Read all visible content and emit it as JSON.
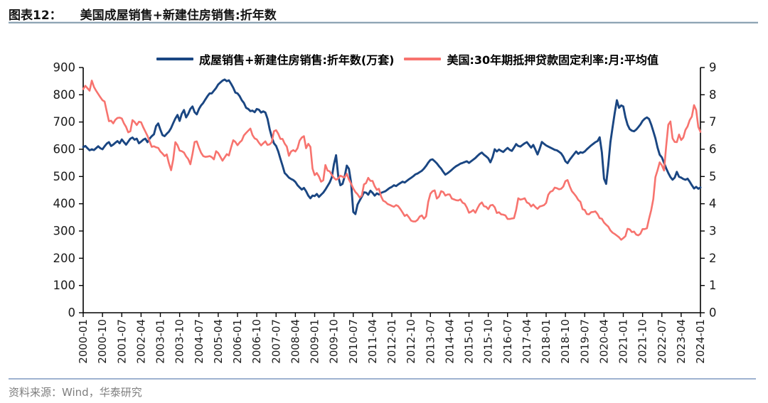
{
  "header": {
    "prefix": "图表12：",
    "title": "美国成屋销售+新建住房销售:折年数"
  },
  "legend": [
    {
      "label": "成屋销售+新建住房销售:折年数(万套)",
      "color": "#1a4682"
    },
    {
      "label": "美国:30年期抵押贷款固定利率:月:平均值",
      "color": "#f7736e"
    }
  ],
  "footer": {
    "source_label": "资料来源：Wind，华泰研究"
  },
  "chart_data": {
    "type": "line",
    "title": "美国成屋销售+新建住房销售:折年数",
    "x_start": "2000-01",
    "x_end": "2024-01",
    "x_frequency": "monthly",
    "x_tick_labels": [
      "2000-01",
      "2000-10",
      "2001-07",
      "2002-04",
      "2003-01",
      "2003-10",
      "2004-07",
      "2005-04",
      "2006-01",
      "2006-10",
      "2007-07",
      "2008-04",
      "2009-01",
      "2009-10",
      "2010-07",
      "2011-04",
      "2012-01",
      "2012-10",
      "2013-07",
      "2014-04",
      "2015-01",
      "2015-10",
      "2016-07",
      "2017-04",
      "2018-01",
      "2018-10",
      "2019-07",
      "2020-04",
      "2021-01",
      "2021-10",
      "2022-07",
      "2023-04",
      "2024-01"
    ],
    "x_tick_step_months": 9,
    "grid": false,
    "legend_position": "top-center",
    "left_axis": {
      "range": [
        0,
        900
      ],
      "ticks": [
        0,
        100,
        200,
        300,
        400,
        500,
        600,
        700,
        800,
        900
      ]
    },
    "right_axis": {
      "range": [
        0,
        9
      ],
      "ticks": [
        0,
        1,
        2,
        3,
        4,
        5,
        6,
        7,
        8,
        9
      ]
    },
    "series": [
      {
        "name": "成屋销售+新建住房销售:折年数(万套)",
        "axis": "left",
        "color": "#1a4682",
        "values": [
          608,
          612,
          604,
          596,
          600,
          597,
          604,
          611,
          604,
          600,
          611,
          621,
          626,
          612,
          617,
          624,
          630,
          622,
          636,
          626,
          617,
          628,
          639,
          643,
          635,
          639,
          622,
          628,
          635,
          639,
          626,
          639,
          648,
          655,
          685,
          695,
          672,
          652,
          648,
          657,
          665,
          678,
          696,
          713,
          726,
          704,
          730,
          744,
          717,
          730,
          748,
          757,
          736,
          728,
          748,
          761,
          770,
          783,
          795,
          805,
          805,
          815,
          825,
          838,
          845,
          852,
          856,
          850,
          853,
          840,
          826,
          808,
          805,
          795,
          780,
          770,
          752,
          748,
          740,
          742,
          736,
          748,
          745,
          735,
          739,
          735,
          712,
          674,
          645,
          622,
          612,
          592,
          565,
          540,
          513,
          505,
          496,
          491,
          487,
          480,
          468,
          460,
          452,
          458,
          446,
          430,
          420,
          430,
          428,
          436,
          425,
          433,
          441,
          452,
          465,
          478,
          497,
          545,
          578,
          500,
          468,
          473,
          500,
          540,
          528,
          478,
          370,
          362,
          397,
          412,
          426,
          442,
          441,
          433,
          448,
          440,
          430,
          438,
          434,
          440,
          443,
          446,
          452,
          458,
          462,
          468,
          465,
          471,
          476,
          481,
          478,
          484,
          490,
          495,
          501,
          508,
          511,
          516,
          521,
          529,
          539,
          551,
          561,
          563,
          556,
          548,
          538,
          529,
          517,
          507,
          512,
          518,
          525,
          532,
          538,
          542,
          547,
          550,
          553,
          556,
          550,
          556,
          562,
          568,
          576,
          583,
          588,
          580,
          574,
          567,
          552,
          571,
          600,
          592,
          599,
          594,
          590,
          598,
          605,
          598,
          594,
          606,
          619,
          612,
          610,
          616,
          622,
          626,
          616,
          606,
          616,
          599,
          581,
          602,
          627,
          620,
          614,
          610,
          606,
          602,
          598,
          596,
          591,
          585,
          573,
          556,
          549,
          562,
          572,
          582,
          592,
          583,
          589,
          587,
          592,
          600,
          607,
          614,
          620,
          626,
          630,
          644,
          588,
          492,
          473,
          542,
          626,
          680,
          732,
          780,
          752,
          761,
          757,
          718,
          690,
          674,
          668,
          666,
          672,
          681,
          691,
          704,
          712,
          717,
          711,
          691,
          666,
          640,
          606,
          580,
          570,
          550,
          530,
          513,
          498,
          488,
          496,
          517,
          499,
          496,
          491,
          488,
          492,
          481,
          468,
          456,
          462,
          455,
          460
        ]
      },
      {
        "name": "美国:30年期抵押贷款固定利率:月:平均值",
        "axis": "right",
        "color": "#f7736e",
        "values": [
          8.21,
          8.33,
          8.24,
          8.15,
          8.52,
          8.29,
          8.15,
          8.03,
          7.91,
          7.8,
          7.75,
          7.38,
          7.03,
          7.05,
          6.95,
          7.08,
          7.15,
          7.16,
          7.13,
          6.95,
          6.82,
          6.62,
          6.66,
          7.07,
          7.0,
          6.89,
          7.01,
          6.99,
          6.81,
          6.65,
          6.49,
          6.29,
          6.09,
          6.11,
          6.07,
          6.05,
          5.92,
          5.84,
          5.75,
          5.81,
          5.48,
          5.23,
          5.63,
          6.26,
          6.15,
          5.95,
          5.93,
          5.88,
          5.74,
          5.64,
          5.45,
          5.83,
          6.27,
          6.29,
          6.06,
          5.87,
          5.75,
          5.72,
          5.73,
          5.75,
          5.71,
          5.63,
          5.93,
          5.86,
          5.72,
          5.58,
          5.7,
          5.82,
          5.77,
          6.07,
          6.33,
          6.27,
          6.15,
          6.25,
          6.32,
          6.51,
          6.6,
          6.68,
          6.76,
          6.52,
          6.4,
          6.36,
          6.24,
          6.14,
          6.22,
          6.29,
          6.16,
          6.18,
          6.26,
          6.66,
          6.7,
          6.57,
          6.38,
          6.38,
          6.21,
          6.1,
          5.76,
          5.92,
          5.97,
          5.92,
          6.04,
          6.32,
          6.43,
          6.48,
          6.04,
          6.2,
          6.09,
          5.29,
          5.05,
          5.13,
          5.0,
          4.81,
          4.86,
          5.42,
          5.22,
          5.19,
          5.06,
          4.95,
          4.88,
          4.93,
          5.03,
          4.99,
          4.97,
          5.1,
          4.89,
          4.74,
          4.56,
          4.43,
          4.35,
          4.23,
          4.3,
          4.71,
          4.76,
          4.95,
          4.84,
          4.84,
          4.64,
          4.51,
          4.55,
          4.27,
          4.11,
          4.07,
          3.99,
          3.96,
          3.92,
          3.89,
          3.95,
          3.91,
          3.8,
          3.68,
          3.55,
          3.6,
          3.5,
          3.38,
          3.35,
          3.35,
          3.41,
          3.53,
          3.57,
          3.45,
          3.54,
          4.07,
          4.37,
          4.46,
          4.49,
          4.19,
          4.26,
          4.46,
          4.43,
          4.3,
          4.34,
          4.34,
          4.19,
          4.16,
          4.13,
          4.12,
          4.16,
          4.04,
          4.0,
          3.86,
          3.67,
          3.71,
          3.77,
          3.67,
          3.84,
          3.98,
          4.05,
          3.91,
          3.89,
          3.8,
          3.94,
          3.96,
          3.87,
          3.66,
          3.69,
          3.61,
          3.6,
          3.57,
          3.44,
          3.44,
          3.46,
          3.47,
          3.77,
          4.2,
          4.15,
          4.17,
          4.2,
          4.05,
          4.01,
          3.9,
          3.97,
          3.88,
          3.81,
          3.9,
          3.92,
          3.95,
          4.03,
          4.33,
          4.44,
          4.47,
          4.59,
          4.57,
          4.53,
          4.55,
          4.63,
          4.83,
          4.87,
          4.64,
          4.46,
          4.37,
          4.27,
          4.14,
          4.07,
          3.8,
          3.77,
          3.62,
          3.61,
          3.69,
          3.7,
          3.72,
          3.62,
          3.47,
          3.45,
          3.31,
          3.23,
          3.16,
          3.02,
          2.94,
          2.89,
          2.83,
          2.77,
          2.68,
          2.74,
          2.81,
          3.08,
          3.06,
          2.96,
          2.98,
          2.87,
          2.84,
          2.9,
          3.07,
          3.07,
          3.1,
          3.45,
          3.76,
          4.17,
          4.98,
          5.23,
          5.52,
          5.41,
          5.22,
          6.11,
          6.9,
          7.02,
          6.4,
          6.27,
          6.26,
          6.54,
          6.34,
          6.43,
          6.71,
          6.84,
          7.07,
          7.2,
          7.62,
          7.44,
          6.82,
          6.64
        ]
      }
    ]
  }
}
